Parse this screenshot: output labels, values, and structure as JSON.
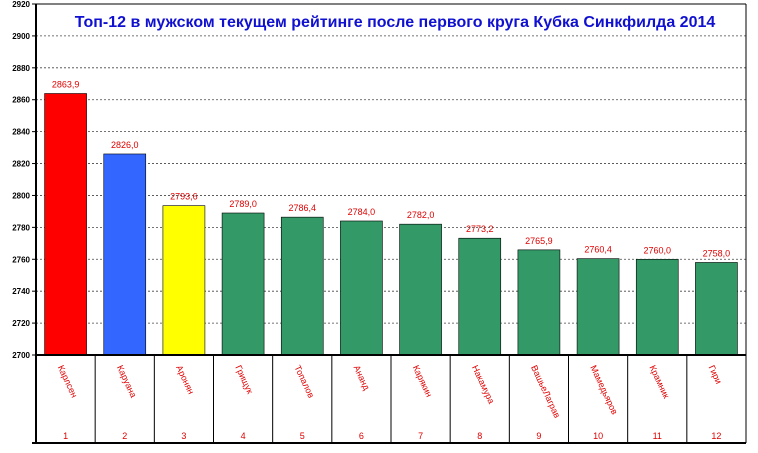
{
  "chart_data": {
    "type": "bar",
    "title": "Топ-12 в мужском текущем рейтинге после первого круга Кубка Синкфилда 2014",
    "xlabel": "",
    "ylabel": "",
    "ylim": [
      2700,
      2920
    ],
    "yticks": [
      2700,
      2720,
      2740,
      2760,
      2780,
      2800,
      2820,
      2840,
      2860,
      2880,
      2900,
      2920
    ],
    "grid": true,
    "categories": [
      "Карлсен",
      "Каруана",
      "Аронян",
      "Грищук",
      "Топалов",
      "Ананд",
      "Карякин",
      "Накамура",
      "ВашьеЛаграв",
      "Мамедьяров",
      "Крамник",
      "Гири"
    ],
    "ranks": [
      "1",
      "2",
      "3",
      "4",
      "5",
      "6",
      "7",
      "8",
      "9",
      "10",
      "11",
      "12"
    ],
    "values": [
      2863.9,
      2826.0,
      2793.6,
      2789.0,
      2786.4,
      2784.0,
      2782.0,
      2773.2,
      2765.9,
      2760.4,
      2760.0,
      2758.0
    ],
    "value_labels": [
      "2863,9",
      "2826,0",
      "2793,6",
      "2789,0",
      "2786,4",
      "2784,0",
      "2782,0",
      "2773,2",
      "2765,9",
      "2760,4",
      "2760,0",
      "2758,0"
    ],
    "colors": [
      "#ff0000",
      "#3366ff",
      "#ffff00",
      "#339966",
      "#339966",
      "#339966",
      "#339966",
      "#339966",
      "#339966",
      "#339966",
      "#339966",
      "#339966"
    ],
    "label_color": "#e00000",
    "title_color": "#1010d0"
  }
}
